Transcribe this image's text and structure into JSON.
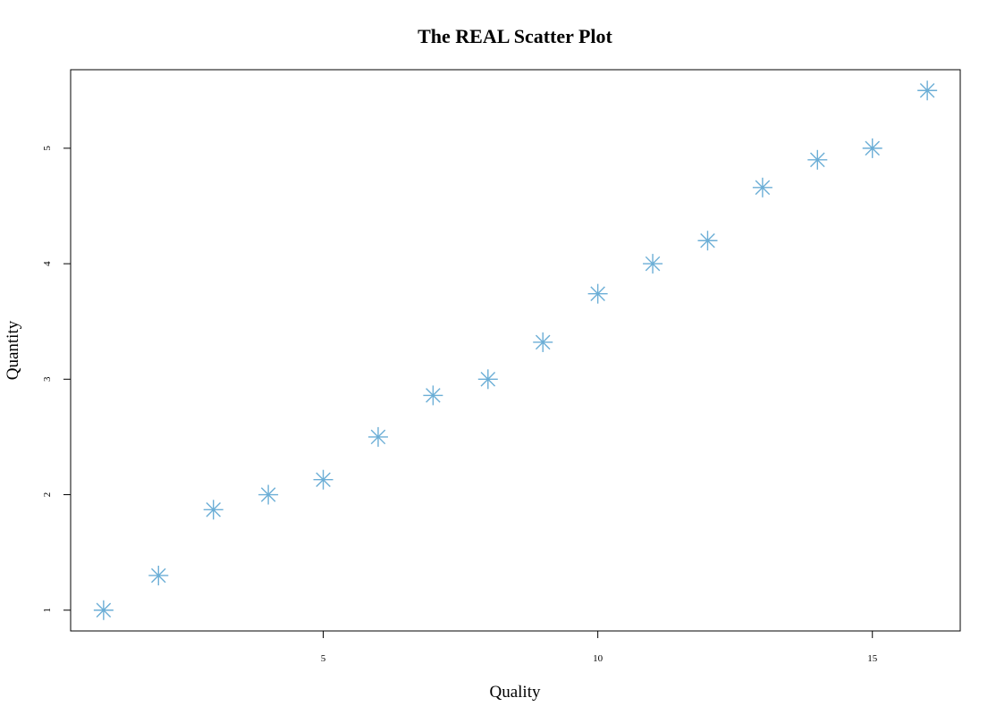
{
  "chart_data": {
    "type": "scatter",
    "title": "The REAL Scatter Plot",
    "xlabel": "Quality",
    "ylabel": "Quantity",
    "x": [
      1,
      2,
      3,
      4,
      5,
      6,
      7,
      8,
      9,
      10,
      11,
      12,
      13,
      14,
      15,
      16
    ],
    "y": [
      1.0,
      1.3,
      1.87,
      2.0,
      2.13,
      2.5,
      2.86,
      3.0,
      3.32,
      3.74,
      4.0,
      4.2,
      4.66,
      4.9,
      5.0,
      5.5
    ],
    "xlim": [
      0.4,
      16.6
    ],
    "ylim": [
      0.82,
      5.68
    ],
    "xticks": [
      5,
      10,
      15
    ],
    "yticks": [
      1,
      2,
      3,
      4,
      5
    ],
    "xtick_labels": [
      "5",
      "10",
      "15"
    ],
    "ytick_labels": [
      "1",
      "2",
      "3",
      "4",
      "5"
    ],
    "marker": "asterisk",
    "marker_color": "#6BAED6",
    "grid": false,
    "legend": false
  }
}
